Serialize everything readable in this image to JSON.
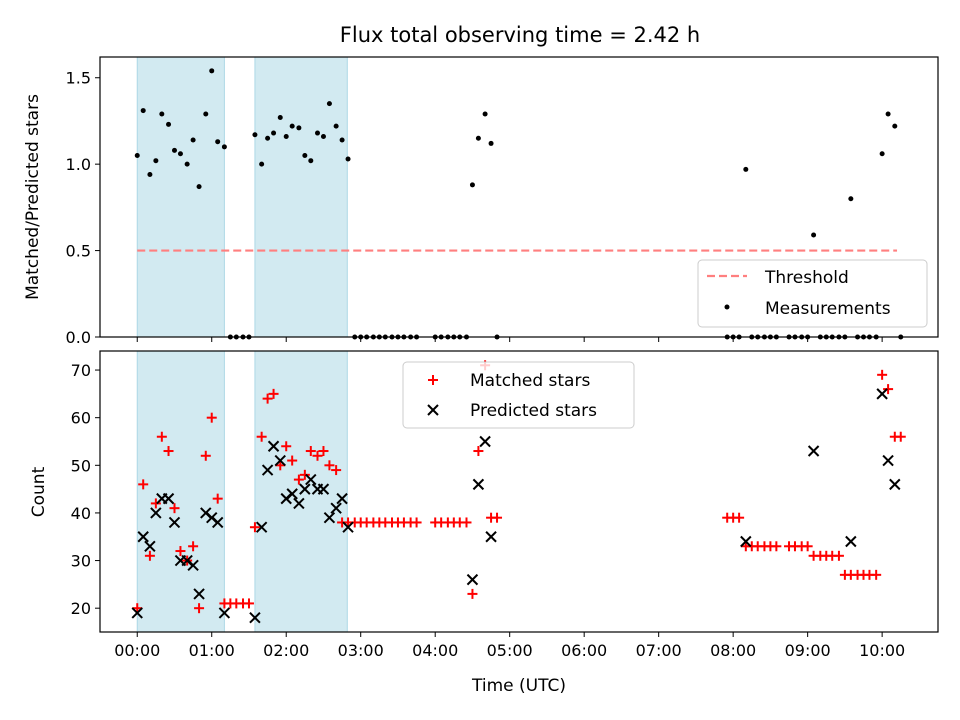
{
  "figure": {
    "title": "Flux total observing time = 2.42 h",
    "xlabel": "Time (UTC)",
    "x_tick_labels": [
      "00:00",
      "01:00",
      "02:00",
      "03:00",
      "04:00",
      "05:00",
      "06:00",
      "07:00",
      "08:00",
      "09:00",
      "10:00"
    ]
  },
  "colors": {
    "shade": "#add8e6",
    "threshold": "#ff7f7f",
    "measurement": "#000000",
    "matched": "#ff0000",
    "predicted": "#000000"
  },
  "chart_data": [
    {
      "type": "scatter",
      "ylabel": "Matched/Predicted stars",
      "xlim": [
        -0.5,
        10.75
      ],
      "ylim": [
        0,
        1.62
      ],
      "y_ticks": [
        0.0,
        0.5,
        1.0,
        1.5
      ],
      "y_tick_labels": [
        "0.0",
        "0.5",
        "1.0",
        "1.5"
      ],
      "shaded_intervals": [
        [
          0.0,
          1.17
        ],
        [
          1.58,
          2.82
        ]
      ],
      "threshold": {
        "name": "Threshold",
        "value": 0.5,
        "x_range": [
          0.0,
          10.2
        ]
      },
      "legend": {
        "placement": "lower right",
        "entries": [
          "Threshold",
          "Measurements"
        ]
      },
      "series": [
        {
          "name": "Measurements",
          "x": [
            0.0,
            0.08,
            0.17,
            0.25,
            0.33,
            0.42,
            0.5,
            0.58,
            0.67,
            0.75,
            0.83,
            0.92,
            1.0,
            1.08,
            1.17,
            1.25,
            1.33,
            1.42,
            1.5,
            1.58,
            1.67,
            1.75,
            1.83,
            1.92,
            2.0,
            2.08,
            2.17,
            2.25,
            2.33,
            2.42,
            2.5,
            2.58,
            2.67,
            2.75,
            2.83,
            2.92,
            3.0,
            3.08,
            3.17,
            3.25,
            3.33,
            3.42,
            3.5,
            3.58,
            3.67,
            3.75,
            4.0,
            4.08,
            4.17,
            4.25,
            4.33,
            4.42,
            4.5,
            4.58,
            4.67,
            4.75,
            4.83,
            7.92,
            8.0,
            8.08,
            8.17,
            8.25,
            8.33,
            8.42,
            8.5,
            8.58,
            8.75,
            8.83,
            8.92,
            9.0,
            9.08,
            9.17,
            9.25,
            9.33,
            9.42,
            9.5,
            9.58,
            9.67,
            9.75,
            9.83,
            9.92,
            10.0,
            10.08,
            10.17,
            10.25
          ],
          "values": [
            1.05,
            1.31,
            0.94,
            1.02,
            1.29,
            1.23,
            1.08,
            1.06,
            1.0,
            1.14,
            0.87,
            1.29,
            1.54,
            1.13,
            1.1,
            0,
            0,
            0,
            0,
            1.17,
            1.0,
            1.15,
            1.18,
            1.27,
            1.16,
            1.22,
            1.21,
            1.05,
            1.02,
            1.18,
            1.16,
            1.35,
            1.22,
            1.14,
            1.03,
            0,
            0,
            0,
            0,
            0,
            0,
            0,
            0,
            0,
            0,
            0,
            0,
            0,
            0,
            0,
            0,
            0,
            0.88,
            1.15,
            1.29,
            1.12,
            0,
            0,
            0,
            0,
            0.97,
            0,
            0,
            0,
            0,
            0,
            0,
            0,
            0,
            0,
            0.59,
            0,
            0,
            0,
            0,
            0,
            0.8,
            0,
            0,
            0,
            0,
            1.06,
            1.29,
            1.22,
            0
          ]
        }
      ]
    },
    {
      "type": "scatter",
      "ylabel": "Count",
      "xlim": [
        -0.5,
        10.75
      ],
      "ylim": [
        15,
        74
      ],
      "y_ticks": [
        20,
        30,
        40,
        50,
        60,
        70
      ],
      "y_tick_labels": [
        "20",
        "30",
        "40",
        "50",
        "60",
        "70"
      ],
      "shaded_intervals": [
        [
          0.0,
          1.17
        ],
        [
          1.58,
          2.82
        ]
      ],
      "legend": {
        "placement": "upper center",
        "entries": [
          "Matched stars",
          "Predicted stars"
        ]
      },
      "series": [
        {
          "name": "Matched stars",
          "marker": "plus",
          "x": [
            0.0,
            0.08,
            0.17,
            0.25,
            0.33,
            0.42,
            0.5,
            0.58,
            0.67,
            0.75,
            0.83,
            0.92,
            1.0,
            1.08,
            1.17,
            1.25,
            1.33,
            1.42,
            1.5,
            1.58,
            1.67,
            1.75,
            1.83,
            1.92,
            2.0,
            2.08,
            2.17,
            2.25,
            2.33,
            2.42,
            2.5,
            2.58,
            2.67,
            2.75,
            2.83,
            2.92,
            3.0,
            3.08,
            3.17,
            3.25,
            3.33,
            3.42,
            3.5,
            3.58,
            3.67,
            3.75,
            4.0,
            4.08,
            4.17,
            4.25,
            4.33,
            4.42,
            4.5,
            4.58,
            4.67,
            4.75,
            4.83,
            7.92,
            8.0,
            8.08,
            8.17,
            8.25,
            8.33,
            8.42,
            8.5,
            8.58,
            8.75,
            8.83,
            8.92,
            9.0,
            9.08,
            9.17,
            9.25,
            9.33,
            9.42,
            9.5,
            9.58,
            9.67,
            9.75,
            9.83,
            9.92,
            10.0,
            10.08,
            10.17,
            10.25
          ],
          "values": [
            20,
            46,
            31,
            42,
            56,
            53,
            41,
            32,
            30,
            33,
            20,
            52,
            60,
            43,
            21,
            21,
            21,
            21,
            21,
            37,
            56,
            64,
            65,
            50,
            54,
            51,
            47,
            48,
            53,
            52,
            53,
            50,
            49,
            38,
            38,
            38,
            38,
            38,
            38,
            38,
            38,
            38,
            38,
            38,
            38,
            38,
            38,
            38,
            38,
            38,
            38,
            38,
            23,
            53,
            71,
            39,
            39,
            39,
            39,
            39,
            33,
            33,
            33,
            33,
            33,
            33,
            33,
            33,
            33,
            33,
            31,
            31,
            31,
            31,
            31,
            27,
            27,
            27,
            27,
            27,
            27,
            69,
            66,
            56,
            56
          ]
        },
        {
          "name": "Predicted stars",
          "marker": "x",
          "x": [
            0.0,
            0.08,
            0.17,
            0.25,
            0.33,
            0.42,
            0.5,
            0.58,
            0.67,
            0.75,
            0.83,
            0.92,
            1.0,
            1.08,
            1.17,
            1.58,
            1.67,
            1.75,
            1.83,
            1.92,
            2.0,
            2.08,
            2.17,
            2.25,
            2.33,
            2.42,
            2.5,
            2.58,
            2.67,
            2.75,
            2.83,
            4.5,
            4.58,
            4.67,
            4.75,
            8.17,
            9.08,
            9.58,
            10.0,
            10.08,
            10.17
          ],
          "values": [
            19,
            35,
            33,
            40,
            43,
            43,
            38,
            30,
            30,
            29,
            23,
            40,
            39,
            38,
            19,
            18,
            37,
            49,
            54,
            51,
            43,
            44,
            42,
            45,
            47,
            45,
            45,
            39,
            41,
            43,
            37,
            26,
            46,
            55,
            35,
            34,
            53,
            34,
            65,
            51,
            46
          ]
        }
      ]
    }
  ]
}
